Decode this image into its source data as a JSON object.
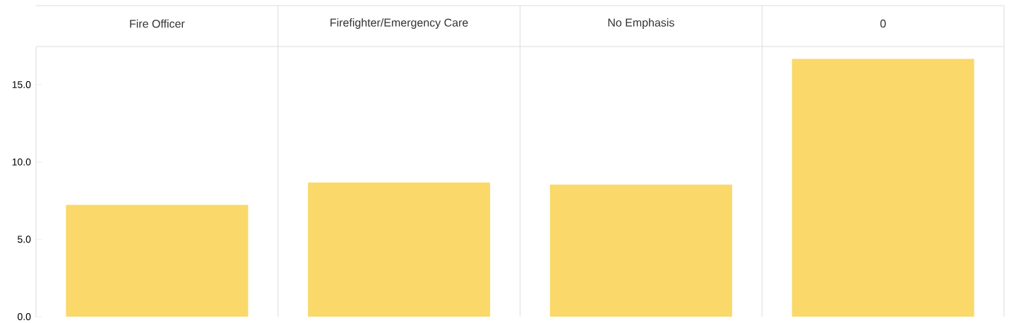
{
  "chart_data": {
    "type": "bar",
    "categories": [
      "Fire Officer",
      "Firefighter/Emergency Care",
      "No Emphasis",
      "0"
    ],
    "values": [
      7.22,
      8.67,
      8.54,
      16.66
    ],
    "color": "#fad96a",
    "ylim": [
      0,
      17.46
    ],
    "yticks": [
      {
        "value": 0,
        "label": "0.0"
      },
      {
        "value": 5,
        "label": "5.0"
      },
      {
        "value": 10,
        "label": "10.0"
      },
      {
        "value": 15,
        "label": "15.0"
      }
    ]
  }
}
